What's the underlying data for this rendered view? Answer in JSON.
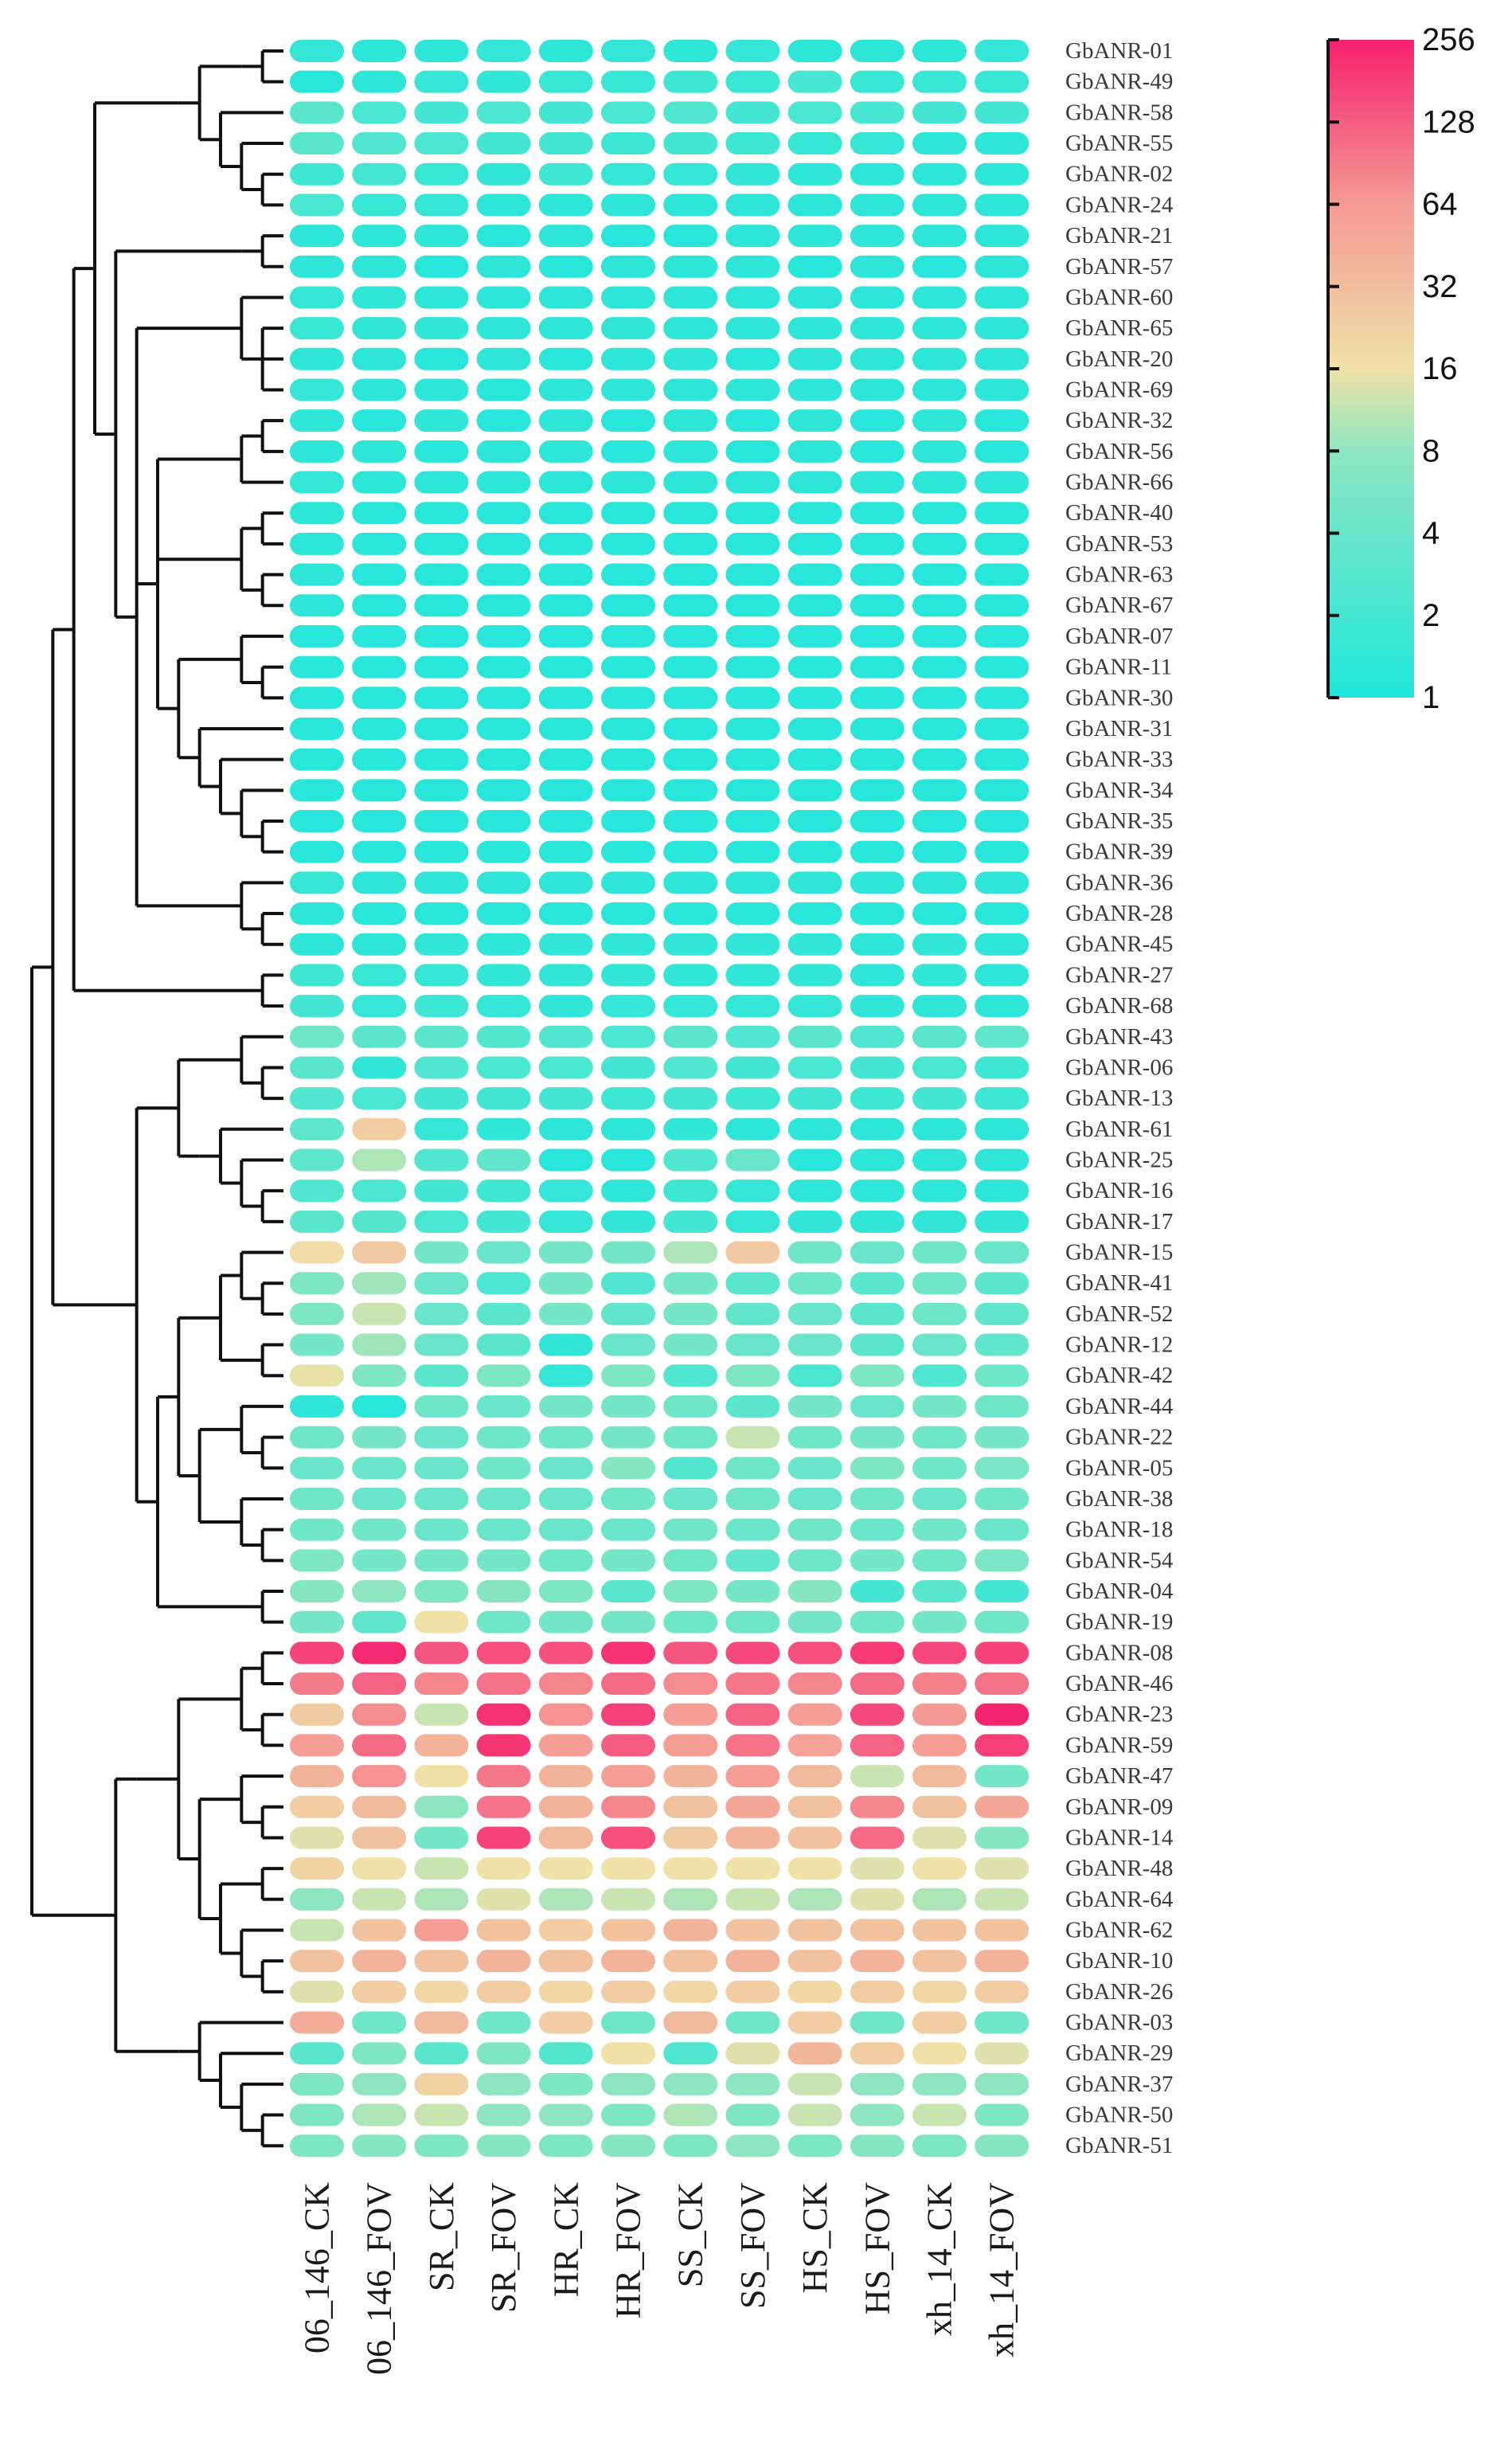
{
  "chart_data": {
    "type": "heatmap",
    "title": "",
    "xlabel": "",
    "ylabel": "",
    "scale": "log2",
    "value_range": [
      1,
      256
    ],
    "colorbar": {
      "ticks": [
        "256",
        "128",
        "64",
        "32",
        "16",
        "8",
        "4",
        "2",
        "1"
      ],
      "tick_values": [
        256,
        128,
        64,
        32,
        16,
        8,
        4,
        2,
        1
      ],
      "colors": [
        "#1fe6dc",
        "#8ee6c0",
        "#f0e2a6",
        "#f49b94",
        "#f5206e"
      ]
    },
    "columns": [
      "06_146_CK",
      "06_146_FOV",
      "SR_CK",
      "SR_FOV",
      "HR_CK",
      "HR_FOV",
      "SS_CK",
      "SS_FOV",
      "HS_CK",
      "HS_FOV",
      "xh_14_CK",
      "xh_14_FOV"
    ],
    "rows": [
      "GbANR-01",
      "GbANR-49",
      "GbANR-58",
      "GbANR-55",
      "GbANR-02",
      "GbANR-24",
      "GbANR-21",
      "GbANR-57",
      "GbANR-60",
      "GbANR-65",
      "GbANR-20",
      "GbANR-69",
      "GbANR-32",
      "GbANR-56",
      "GbANR-66",
      "GbANR-40",
      "GbANR-53",
      "GbANR-63",
      "GbANR-67",
      "GbANR-07",
      "GbANR-11",
      "GbANR-30",
      "GbANR-31",
      "GbANR-33",
      "GbANR-34",
      "GbANR-35",
      "GbANR-39",
      "GbANR-36",
      "GbANR-28",
      "GbANR-45",
      "GbANR-27",
      "GbANR-68",
      "GbANR-43",
      "GbANR-06",
      "GbANR-13",
      "GbANR-61",
      "GbANR-25",
      "GbANR-16",
      "GbANR-17",
      "GbANR-15",
      "GbANR-41",
      "GbANR-52",
      "GbANR-12",
      "GbANR-42",
      "GbANR-44",
      "GbANR-22",
      "GbANR-05",
      "GbANR-38",
      "GbANR-18",
      "GbANR-54",
      "GbANR-04",
      "GbANR-19",
      "GbANR-08",
      "GbANR-46",
      "GbANR-23",
      "GbANR-59",
      "GbANR-47",
      "GbANR-09",
      "GbANR-14",
      "GbANR-48",
      "GbANR-64",
      "GbANR-62",
      "GbANR-10",
      "GbANR-26",
      "GbANR-03",
      "GbANR-29",
      "GbANR-37",
      "GbANR-50",
      "GbANR-51"
    ],
    "values": [
      [
        1.5,
        1.3,
        1.3,
        1.5,
        1.3,
        1.5,
        1.3,
        1.5,
        1.3,
        1.3,
        1.3,
        1.5
      ],
      [
        1.2,
        1.3,
        1.5,
        1.4,
        1.6,
        1.6,
        1.8,
        1.6,
        2.1,
        1.6,
        1.6,
        1.6
      ],
      [
        3.0,
        2.2,
        2.0,
        2.3,
        2.0,
        2.2,
        2.5,
        2.0,
        2.2,
        2.1,
        2.0,
        2.0
      ],
      [
        3.0,
        2.5,
        2.3,
        2.0,
        2.0,
        1.8,
        2.0,
        1.8,
        1.5,
        1.5,
        1.3,
        1.3
      ],
      [
        1.8,
        2.1,
        1.6,
        1.4,
        1.8,
        1.5,
        1.5,
        1.4,
        1.3,
        1.3,
        1.3,
        1.3
      ],
      [
        2.2,
        1.6,
        1.5,
        1.3,
        1.3,
        1.3,
        1.3,
        1.3,
        1.3,
        1.3,
        1.3,
        1.3
      ],
      [
        1.3,
        1.3,
        1.3,
        1.2,
        1.3,
        1.2,
        1.2,
        1.3,
        1.3,
        1.3,
        1.3,
        1.3
      ],
      [
        1.3,
        1.3,
        1.2,
        1.3,
        1.2,
        1.3,
        1.3,
        1.3,
        1.2,
        1.3,
        1.2,
        1.3
      ],
      [
        1.5,
        1.4,
        1.3,
        1.3,
        1.3,
        1.3,
        1.3,
        1.3,
        1.3,
        1.3,
        1.3,
        1.3
      ],
      [
        1.6,
        1.4,
        1.4,
        1.3,
        1.3,
        1.4,
        1.3,
        1.3,
        1.3,
        1.3,
        1.3,
        1.3
      ],
      [
        1.3,
        1.3,
        1.2,
        1.3,
        1.2,
        1.3,
        1.3,
        1.2,
        1.3,
        1.3,
        1.3,
        1.3
      ],
      [
        1.5,
        1.3,
        1.3,
        1.2,
        1.3,
        1.3,
        1.3,
        1.3,
        1.3,
        1.3,
        1.3,
        1.3
      ],
      [
        1.3,
        1.2,
        1.3,
        1.2,
        1.3,
        1.2,
        1.3,
        1.2,
        1.3,
        1.2,
        1.3,
        1.2
      ],
      [
        1.3,
        1.3,
        1.2,
        1.3,
        1.3,
        1.2,
        1.3,
        1.2,
        1.3,
        1.2,
        1.3,
        1.2
      ],
      [
        1.5,
        1.3,
        1.3,
        1.3,
        1.3,
        1.3,
        1.3,
        1.3,
        1.3,
        1.3,
        1.3,
        1.3
      ],
      [
        1.3,
        1.2,
        1.2,
        1.2,
        1.2,
        1.2,
        1.2,
        1.2,
        1.2,
        1.2,
        1.2,
        1.2
      ],
      [
        1.3,
        1.2,
        1.2,
        1.2,
        1.2,
        1.2,
        1.2,
        1.2,
        1.2,
        1.2,
        1.2,
        1.2
      ],
      [
        1.3,
        1.2,
        1.2,
        1.2,
        1.2,
        1.2,
        1.2,
        1.2,
        1.2,
        1.2,
        1.2,
        1.2
      ],
      [
        1.3,
        1.2,
        1.2,
        1.2,
        1.2,
        1.2,
        1.2,
        1.2,
        1.2,
        1.2,
        1.2,
        1.2
      ],
      [
        1.2,
        1.2,
        1.2,
        1.2,
        1.2,
        1.2,
        1.2,
        1.2,
        1.2,
        1.2,
        1.2,
        1.2
      ],
      [
        1.2,
        1.2,
        1.2,
        1.2,
        1.2,
        1.2,
        1.2,
        1.2,
        1.2,
        1.2,
        1.2,
        1.2
      ],
      [
        1.2,
        1.2,
        1.2,
        1.2,
        1.2,
        1.2,
        1.2,
        1.2,
        1.2,
        1.2,
        1.2,
        1.2
      ],
      [
        1.2,
        1.2,
        1.2,
        1.2,
        1.2,
        1.2,
        1.2,
        1.2,
        1.2,
        1.2,
        1.2,
        1.2
      ],
      [
        1.2,
        1.2,
        1.2,
        1.2,
        1.2,
        1.2,
        1.2,
        1.2,
        1.2,
        1.2,
        1.2,
        1.2
      ],
      [
        1.2,
        1.2,
        1.2,
        1.2,
        1.2,
        1.2,
        1.2,
        1.2,
        1.2,
        1.2,
        1.2,
        1.2
      ],
      [
        1.2,
        1.2,
        1.2,
        1.2,
        1.2,
        1.2,
        1.2,
        1.2,
        1.2,
        1.2,
        1.2,
        1.2
      ],
      [
        1.2,
        1.2,
        1.2,
        1.2,
        1.2,
        1.2,
        1.2,
        1.2,
        1.2,
        1.2,
        1.2,
        1.2
      ],
      [
        1.5,
        1.3,
        1.3,
        1.3,
        1.3,
        1.3,
        1.3,
        1.3,
        1.3,
        1.3,
        1.3,
        1.3
      ],
      [
        1.3,
        1.2,
        1.2,
        1.2,
        1.2,
        1.2,
        1.2,
        1.2,
        1.2,
        1.2,
        1.2,
        1.2
      ],
      [
        1.3,
        1.3,
        1.4,
        1.3,
        1.4,
        1.4,
        1.4,
        1.4,
        1.4,
        1.3,
        1.4,
        1.3
      ],
      [
        1.8,
        1.6,
        1.5,
        1.4,
        1.4,
        1.4,
        1.4,
        1.4,
        1.4,
        1.3,
        1.4,
        1.3
      ],
      [
        2.0,
        1.6,
        1.8,
        1.5,
        1.4,
        1.5,
        1.5,
        1.5,
        1.5,
        1.4,
        1.4,
        1.3
      ],
      [
        4.5,
        3.0,
        3.0,
        2.6,
        2.5,
        2.3,
        3.0,
        2.5,
        3.0,
        2.5,
        3.0,
        3.5
      ],
      [
        3.0,
        1.4,
        2.5,
        2.2,
        2.2,
        2.0,
        2.5,
        2.0,
        2.2,
        2.0,
        2.2,
        1.8
      ],
      [
        2.5,
        2.2,
        2.0,
        1.9,
        2.0,
        1.8,
        2.0,
        1.8,
        2.0,
        1.8,
        2.0,
        1.8
      ],
      [
        3.2,
        24.0,
        1.5,
        1.4,
        1.3,
        1.3,
        1.4,
        1.3,
        1.3,
        1.3,
        1.3,
        1.3
      ],
      [
        3.2,
        10.0,
        2.5,
        3.5,
        1.2,
        1.2,
        2.5,
        4.0,
        1.2,
        1.3,
        1.3,
        1.3
      ],
      [
        2.5,
        2.3,
        2.0,
        1.8,
        1.5,
        1.3,
        1.8,
        1.5,
        1.3,
        1.3,
        1.3,
        1.3
      ],
      [
        3.0,
        2.8,
        2.2,
        2.0,
        1.5,
        1.4,
        2.0,
        1.5,
        1.4,
        1.4,
        1.4,
        1.4
      ],
      [
        18.0,
        26.0,
        5.0,
        4.0,
        5.0,
        5.0,
        10.0,
        26.0,
        4.5,
        4.0,
        4.5,
        4.0
      ],
      [
        6.0,
        9.0,
        4.0,
        2.3,
        5.0,
        2.5,
        5.0,
        3.0,
        4.5,
        3.0,
        4.5,
        3.0
      ],
      [
        6.0,
        12.0,
        4.0,
        3.0,
        5.0,
        3.5,
        5.0,
        3.5,
        4.0,
        3.0,
        4.5,
        3.5
      ],
      [
        5.0,
        9.0,
        4.0,
        3.0,
        1.4,
        4.0,
        5.0,
        4.0,
        4.0,
        3.0,
        4.0,
        3.5
      ],
      [
        15.0,
        6.0,
        3.0,
        6.0,
        1.5,
        6.0,
        2.5,
        6.0,
        2.2,
        6.0,
        2.5,
        4.5
      ],
      [
        1.3,
        1.2,
        4.5,
        4.0,
        5.0,
        5.0,
        4.5,
        3.0,
        5.0,
        4.0,
        5.0,
        4.5
      ],
      [
        4.5,
        5.0,
        4.0,
        4.5,
        4.5,
        5.0,
        4.5,
        12.0,
        4.5,
        5.0,
        4.5,
        5.0
      ],
      [
        4.0,
        4.0,
        4.0,
        4.5,
        4.0,
        7.0,
        2.6,
        4.5,
        4.0,
        6.0,
        4.5,
        5.5
      ],
      [
        4.5,
        4.0,
        4.0,
        4.0,
        4.0,
        4.5,
        4.0,
        4.5,
        4.0,
        4.5,
        4.0,
        4.5
      ],
      [
        4.5,
        4.5,
        4.0,
        4.0,
        4.0,
        4.0,
        4.5,
        4.0,
        4.5,
        4.0,
        4.5,
        4.0
      ],
      [
        6.0,
        5.0,
        5.0,
        5.0,
        4.5,
        5.0,
        4.5,
        3.5,
        4.5,
        5.0,
        4.5,
        5.5
      ],
      [
        7.0,
        8.0,
        6.0,
        7.0,
        6.0,
        3.0,
        6.0,
        5.0,
        7.0,
        2.0,
        3.0,
        2.0
      ],
      [
        5.0,
        3.5,
        16.0,
        4.5,
        5.0,
        5.0,
        4.5,
        4.5,
        5.0,
        4.5,
        5.0,
        4.5
      ],
      [
        170,
        230,
        140,
        150,
        145,
        210,
        140,
        160,
        150,
        190,
        160,
        170
      ],
      [
        90,
        120,
        80,
        100,
        80,
        110,
        75,
        95,
        80,
        110,
        85,
        100
      ],
      [
        25,
        75,
        12,
        210,
        70,
        180,
        60,
        120,
        60,
        160,
        65,
        245
      ],
      [
        60,
        110,
        40,
        200,
        60,
        130,
        60,
        100,
        55,
        120,
        60,
        180
      ],
      [
        40,
        70,
        16,
        95,
        40,
        60,
        40,
        60,
        35,
        12,
        35,
        5
      ],
      [
        24,
        35,
        8,
        100,
        40,
        80,
        30,
        50,
        30,
        80,
        30,
        50
      ],
      [
        14,
        30,
        5,
        170,
        35,
        150,
        25,
        40,
        30,
        110,
        14,
        7
      ],
      [
        22,
        16,
        12,
        16,
        16,
        16,
        16,
        16,
        16,
        14,
        16,
        14
      ],
      [
        8,
        12,
        10,
        14,
        10,
        12,
        10,
        12,
        10,
        14,
        10,
        12
      ],
      [
        12,
        30,
        60,
        30,
        24,
        30,
        40,
        30,
        30,
        30,
        30,
        30
      ],
      [
        30,
        40,
        30,
        40,
        30,
        40,
        30,
        40,
        30,
        40,
        30,
        40
      ],
      [
        14,
        24,
        20,
        24,
        20,
        24,
        20,
        24,
        20,
        24,
        20,
        24
      ],
      [
        45,
        4.5,
        35,
        4.5,
        24,
        4.5,
        35,
        4.5,
        24,
        4.5,
        24,
        4.5
      ],
      [
        3.0,
        6.0,
        3.0,
        6.0,
        2.6,
        16.0,
        2.5,
        14.0,
        38.0,
        24.0,
        16.0,
        14.0
      ],
      [
        6.0,
        8.0,
        22.0,
        8.0,
        6.0,
        8.0,
        8.0,
        8.0,
        12.0,
        8.0,
        8.0,
        8.0
      ],
      [
        6.0,
        10.0,
        12.0,
        8.0,
        8.0,
        6.0,
        10.0,
        6.0,
        12.0,
        8.0,
        12.0,
        6.0
      ],
      [
        6.0,
        7.0,
        6.0,
        7.0,
        6.0,
        7.0,
        6.0,
        8.0,
        6.0,
        7.0,
        6.0,
        7.0
      ]
    ]
  }
}
